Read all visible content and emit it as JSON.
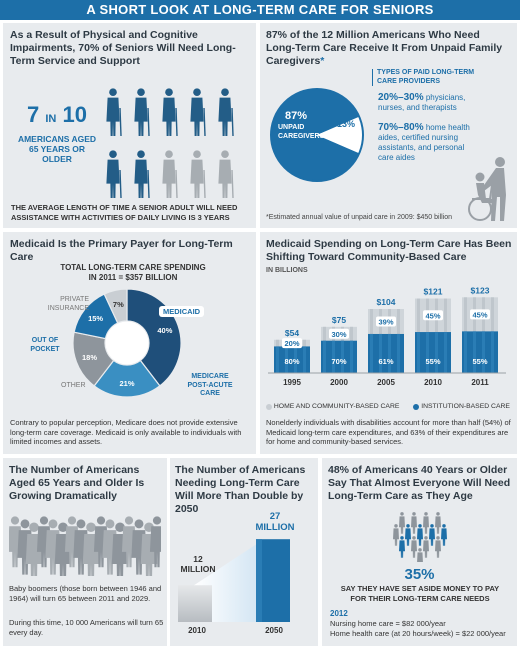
{
  "banner": "A SHORT LOOK AT LONG-TERM CARE FOR SENIORS",
  "p1": {
    "heading": "As a Result of Physical and Cognitive Impairments, 70% of Seniors Will Need Long-Term Service and Support",
    "stat_number": "7",
    "stat_in": "IN",
    "stat_of": "10",
    "stat_caption": "AMERICANS AGED 65 YEARS OR OLDER",
    "people_needing": 7,
    "people_total": 10,
    "footer": "THE AVERAGE LENGTH OF TIME A SENIOR ADULT WILL NEED ASSISTANCE WITH ACTIVITIES OF DAILY LIVING IS 3 YEARS"
  },
  "p2": {
    "heading": "87% of the 12 Million Americans Who Need Long-Term Care Receive It From Unpaid Family Caregivers",
    "heading_mark": "*",
    "pie_unpaid_label": "87%",
    "pie_unpaid_caption": "UNPAID CAREGIVERS",
    "pie_paid_label": "13%",
    "pie_values": [
      87,
      13
    ],
    "types_title": "TYPES OF PAID LONG-TERM CARE PROVIDERS",
    "type1_pct": "20%–30%",
    "type1_text": "physicians, nurses, and therapists",
    "type2_pct": "70%–80%",
    "type2_text": "home health aides, certified nursing assistants, and personal care aides",
    "footnote": "*Estimated annual value of unpaid care in 2009: $450 billion"
  },
  "p3": {
    "heading": "Medicaid Is the Primary Payer for Long-Term Care",
    "chart_title": "TOTAL LONG-TERM CARE SPENDING IN 2011 = $357 BILLION",
    "labels": {
      "medicaid": "MEDICAID",
      "medicare": "MEDICARE POST-ACUTE CARE",
      "other": "OTHER",
      "oop": "OUT OF POCKET",
      "private": "PRIVATE INSURANCE"
    },
    "pct_labels": [
      "40%",
      "21%",
      "18%",
      "15%",
      "7%"
    ],
    "footer": "Contrary to popular perception, Medicare does not provide extensive long-term care coverage. Medicaid is only available to individuals with limited incomes and assets."
  },
  "p4": {
    "heading": "Medicaid Spending on Long-Term Care Has Been Shifting Toward Community-Based Care",
    "unit": "IN BILLIONS",
    "legend_home": "HOME AND COMMUNITY-BASED CARE",
    "legend_inst": "INSTITUTION-BASED CARE",
    "footer": "Nonelderly individuals with disabilities account for more than half (54%) of Medicaid long-term care expenditures, and 63% of their expenditures are for home and community-based services."
  },
  "p5": {
    "heading": "The Number of Americans Aged 65 Years and Older Is Growing Dramatically",
    "text1": "Baby boomers (those born between 1946 and 1964) will turn 65 between 2011 and 2029.",
    "text2": "During this time, 10 000 Americans will turn 65 every day."
  },
  "p6": {
    "heading": "The Number of Americans Needing Long-Term Care Will More Than Double by 2050",
    "label_2010": "12",
    "label_2010_unit": "MILLION",
    "label_2050": "27",
    "label_2050_unit": "MILLION",
    "year_2010": "2010",
    "year_2050": "2050"
  },
  "p7": {
    "heading": "48% of Americans 40 Years or Older Say That Almost Everyone Will Need Long-Term Care as They Age",
    "people_highlight": 5,
    "people_total": 14,
    "pct": "35%",
    "caption": "SAY THEY HAVE SET ASIDE MONEY TO PAY FOR THEIR LONG-TERM CARE NEEDS",
    "year": "2012",
    "cost1": "Nursing home care = $82 000/year",
    "cost2": "Home health care (at 20 hours/week) = $22 000/year"
  },
  "colors": {
    "accent": "#1d6fa8",
    "dark": "#235d87",
    "gray": "#9aa0a6",
    "light": "#cdd6de",
    "panel": "#e8ebee"
  },
  "chart_data": [
    {
      "type": "pie",
      "title": "TOTAL LONG-TERM CARE SPENDING IN 2011 = $357 BILLION",
      "categories": [
        "MEDICAID",
        "MEDICARE POST-ACUTE CARE",
        "OTHER",
        "OUT OF POCKET",
        "PRIVATE INSURANCE"
      ],
      "values": [
        40,
        21,
        18,
        15,
        7
      ],
      "colors": [
        "#1f4f7a",
        "#3a8fc2",
        "#8e959c",
        "#1d6fa8",
        "#c9ced3"
      ]
    },
    {
      "type": "bar",
      "title": "",
      "unit": "IN BILLIONS",
      "categories": [
        "1995",
        "2000",
        "2005",
        "2010",
        "2011"
      ],
      "totals": [
        "$54",
        "$75",
        "$104",
        "$121",
        "$123"
      ],
      "total_values": [
        54,
        75,
        104,
        121,
        123
      ],
      "series": [
        {
          "name": "INSTITUTION-BASED CARE",
          "values": [
            80,
            70,
            61,
            55,
            55
          ],
          "labels": [
            "80%",
            "70%",
            "61%",
            "55%",
            "55%"
          ]
        },
        {
          "name": "HOME AND COMMUNITY-BASED CARE",
          "values": [
            20,
            30,
            39,
            45,
            45
          ],
          "labels": [
            "20%",
            "30%",
            "39%",
            "45%",
            "45%"
          ]
        }
      ],
      "ylim": [
        0,
        130
      ]
    },
    {
      "type": "bar",
      "title": "",
      "categories": [
        "2010",
        "2050"
      ],
      "values": [
        12,
        27
      ],
      "ylim": [
        0,
        30
      ]
    }
  ]
}
